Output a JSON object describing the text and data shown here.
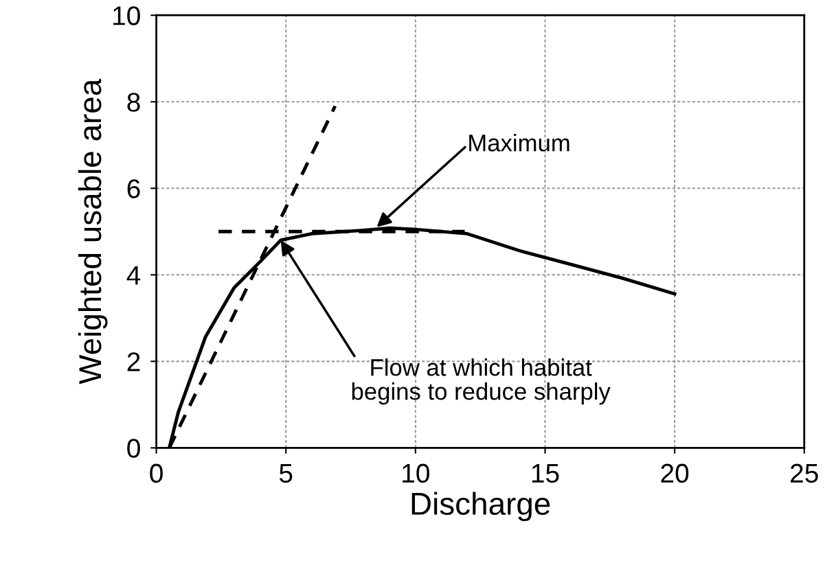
{
  "chart_data": {
    "type": "line",
    "xlabel": "Discharge",
    "ylabel": "Weighted usable area",
    "xlim": [
      0,
      25
    ],
    "ylim": [
      0,
      10
    ],
    "xticks": [
      0,
      5,
      10,
      15,
      20,
      25
    ],
    "yticks": [
      0,
      2,
      4,
      6,
      8,
      10
    ],
    "grid": true,
    "marker": "none",
    "series": [
      {
        "color": "#000000",
        "line_style": "solid",
        "x": [
          0.5,
          0.85,
          1.9,
          3.0,
          4.0,
          4.8,
          6,
          8,
          9,
          10,
          12,
          14,
          16,
          18,
          20
        ],
        "values": [
          0,
          0.83,
          2.57,
          3.7,
          4.3,
          4.8,
          4.95,
          5.03,
          5.08,
          5.05,
          4.95,
          4.56,
          4.24,
          3.92,
          3.56
        ]
      },
      {
        "color": "#000000",
        "line_style": "dashed",
        "x": [
          0.5,
          6.9
        ],
        "values": [
          0,
          7.9
        ]
      },
      {
        "color": "#000000",
        "line_style": "dashed",
        "x": [
          2.4,
          11.9
        ],
        "values": [
          5,
          5
        ]
      }
    ],
    "annotations": [
      {
        "text": "Maximum",
        "x": 8.5,
        "y": 5.1
      },
      {
        "text": "Flow at which habitat\nbegins to reduce sharply",
        "x": 4.8,
        "y": 4.8
      }
    ]
  }
}
